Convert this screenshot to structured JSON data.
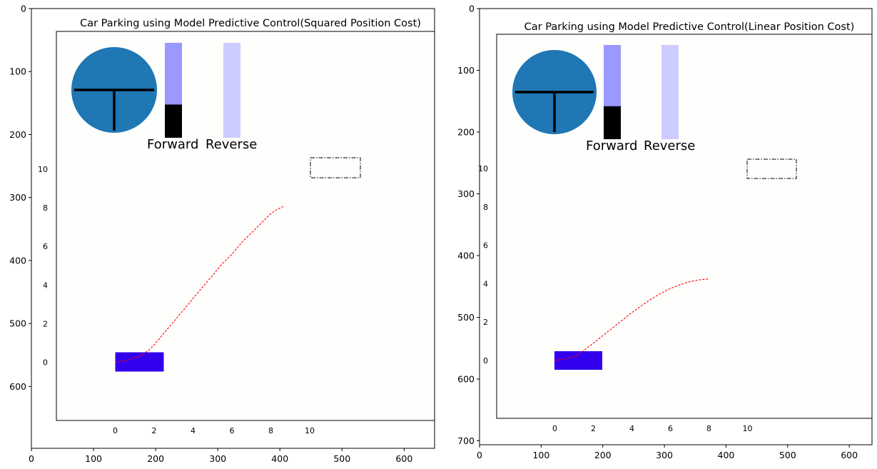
{
  "chart_data": [
    {
      "type": "line",
      "title": "Car Parking using Model Predictive Control(Squared Position Cost)",
      "outer_x_ticks": [
        "0",
        "100",
        "200",
        "300",
        "400",
        "500",
        "600"
      ],
      "outer_y_ticks": [
        "0",
        "100",
        "200",
        "300",
        "400",
        "500",
        "600"
      ],
      "inner_x_ticks": [
        "0",
        "2",
        "4",
        "6",
        "8",
        "10"
      ],
      "inner_y_ticks": [
        "0",
        "2",
        "4",
        "6",
        "8",
        "10"
      ],
      "series": [
        {
          "x": [
            0,
            0.6,
            1.2,
            1.7,
            2.0,
            2.5,
            3.0,
            3.5,
            4.0,
            4.5,
            5.0,
            5.5,
            6.0,
            6.5,
            7.0,
            7.5,
            8.0,
            8.3,
            8.7
          ],
          "y": [
            0,
            0.1,
            0.3,
            0.6,
            0.9,
            1.5,
            2.1,
            2.7,
            3.3,
            3.9,
            4.5,
            5.1,
            5.6,
            6.2,
            6.7,
            7.2,
            7.7,
            7.9,
            8.1
          ]
        }
      ],
      "car_text": "car",
      "steering_wheel_label": "steering",
      "forward_label": "Forward",
      "reverse_label": "Reverse",
      "forward_level": 0.35,
      "reverse_level": 0.0,
      "colors": {
        "car": "#3300ee",
        "wheel": "#1f77b4",
        "forward_bar": "#9999ff",
        "reverse_bar": "#ccccff",
        "path": "#ff0000"
      }
    },
    {
      "type": "line",
      "title": "Car Parking using Model Predictive Control(Linear Position Cost)",
      "outer_x_ticks": [
        "0",
        "100",
        "200",
        "300",
        "400",
        "500",
        "600"
      ],
      "outer_y_ticks": [
        "0",
        "100",
        "200",
        "300",
        "400",
        "500",
        "600",
        "700"
      ],
      "inner_x_ticks": [
        "0",
        "2",
        "4",
        "6",
        "8",
        "10"
      ],
      "inner_y_ticks": [
        "0",
        "2",
        "4",
        "6",
        "8",
        "10"
      ],
      "series": [
        {
          "x": [
            0,
            0.6,
            1.2,
            1.6,
            2.0,
            2.5,
            3.0,
            3.5,
            4.0,
            4.5,
            5.0,
            5.5,
            6.0,
            6.5,
            7.0,
            7.5,
            8.0
          ],
          "y": [
            0,
            0.1,
            0.3,
            0.6,
            0.9,
            1.3,
            1.7,
            2.1,
            2.5,
            2.85,
            3.2,
            3.5,
            3.75,
            3.95,
            4.1,
            4.2,
            4.25
          ]
        }
      ],
      "forward_label": "Forward",
      "reverse_label": "Reverse",
      "forward_level": 0.35,
      "reverse_level": 0.0,
      "colors": {
        "car": "#3300ee",
        "wheel": "#1f77b4",
        "forward_bar": "#9999ff",
        "reverse_bar": "#ccccff",
        "path": "#ff0000"
      }
    }
  ]
}
